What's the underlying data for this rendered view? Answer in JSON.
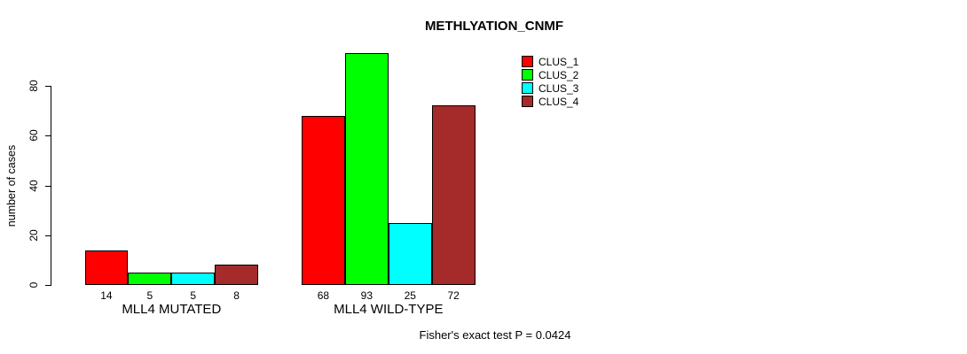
{
  "chart_data": {
    "type": "bar",
    "title": "METHLYATION_CNMF",
    "ylabel": "number of cases",
    "xlabel": "",
    "ylim": [
      0,
      80
    ],
    "yticks": [
      0,
      20,
      40,
      60,
      80
    ],
    "grid": false,
    "legend_position": "top-right",
    "categories": [
      "MLL4 MUTATED",
      "MLL4 WILD-TYPE"
    ],
    "series": [
      {
        "name": "CLUS_1",
        "color": "#FF0000",
        "values": [
          14,
          68
        ]
      },
      {
        "name": "CLUS_2",
        "color": "#00FF00",
        "values": [
          5,
          93
        ]
      },
      {
        "name": "CLUS_3",
        "color": "#00FFFF",
        "values": [
          5,
          25
        ]
      },
      {
        "name": "CLUS_4",
        "color": "#A52A2A",
        "values": [
          8,
          72
        ]
      }
    ],
    "bar_value_labels_shown": true,
    "footnote": "Fisher's exact test P = 0.0424"
  }
}
